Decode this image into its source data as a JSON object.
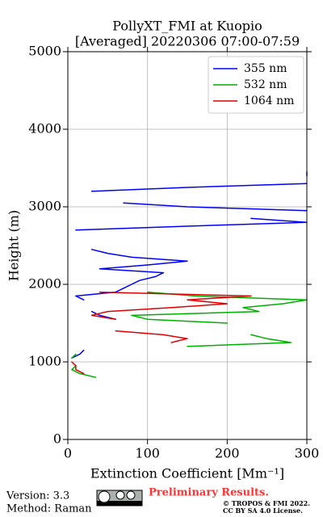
{
  "chart_data": {
    "type": "line",
    "title": "PollyXT_FMI at Kuopio",
    "subtitle": "[Averaged] 20220306 07:00-07:59",
    "xlabel": "Extinction Coefficient [Mm⁻¹]",
    "ylabel": "Height (m)",
    "y": [
      800,
      850,
      900,
      950,
      1000,
      1050,
      1100,
      1150,
      1200,
      1250,
      1300,
      1350,
      1400,
      1450,
      1500,
      1550,
      1600,
      1650,
      1700,
      1750,
      1800,
      1850,
      1900,
      1950,
      2000,
      2050,
      2100,
      2150,
      2200,
      2250,
      2300,
      2350,
      2400,
      2450,
      2500,
      2550,
      2600,
      2650,
      2700,
      2750,
      2800,
      2850,
      2900,
      2950,
      3000,
      3050,
      3100,
      3150,
      3200,
      3250,
      3300,
      3350,
      3400,
      3450
    ],
    "series": [
      {
        "name": "355 nm",
        "color": "#0000ff",
        "values": [
          null,
          null,
          null,
          null,
          null,
          5,
          15,
          20,
          null,
          null,
          null,
          null,
          null,
          null,
          null,
          60,
          40,
          30,
          null,
          null,
          20,
          10,
          60,
          70,
          80,
          90,
          110,
          120,
          40,
          100,
          150,
          80,
          50,
          30,
          null,
          null,
          null,
          null,
          10,
          150,
          300,
          230,
          null,
          300,
          150,
          70,
          null,
          null,
          30,
          150,
          300,
          null,
          300,
          300
        ]
      },
      {
        "name": "532 nm",
        "color": "#00b000",
        "values": [
          35,
          15,
          5,
          10,
          null,
          5,
          10,
          null,
          150,
          280,
          250,
          230,
          null,
          null,
          200,
          100,
          80,
          240,
          220,
          270,
          300,
          160,
          100,
          null,
          null,
          null,
          null,
          null,
          null,
          null,
          null,
          null,
          null,
          null,
          null,
          null,
          null,
          null,
          null,
          null,
          null,
          null,
          null,
          null,
          null,
          null,
          null,
          null,
          null,
          null,
          null,
          null,
          null,
          null
        ]
      },
      {
        "name": "1064 nm",
        "color": "#e00000",
        "values": [
          null,
          20,
          10,
          10,
          5,
          null,
          null,
          null,
          null,
          130,
          150,
          120,
          60,
          null,
          null,
          60,
          30,
          50,
          130,
          200,
          150,
          230,
          40,
          null,
          null,
          null,
          null,
          null,
          null,
          null,
          null,
          null,
          null,
          null,
          null,
          null,
          null,
          null,
          null,
          null,
          null,
          null,
          null,
          null,
          null,
          null,
          null,
          null,
          null,
          null,
          null,
          null,
          null,
          null
        ]
      }
    ],
    "xlim": [
      0,
      300
    ],
    "xticks": [
      0,
      100,
      200,
      300
    ],
    "ylim": [
      0,
      5000
    ],
    "yticks": [
      0,
      1000,
      2000,
      3000,
      4000,
      5000
    ],
    "grid": true,
    "legend": "upper right",
    "footer": {
      "version": "Version: 3.3",
      "method": "Method: Raman",
      "status": "Preliminary Results.",
      "copyright": "© TROPOS & FMI 2022.",
      "license": "CC BY SA 4.0 License."
    }
  }
}
